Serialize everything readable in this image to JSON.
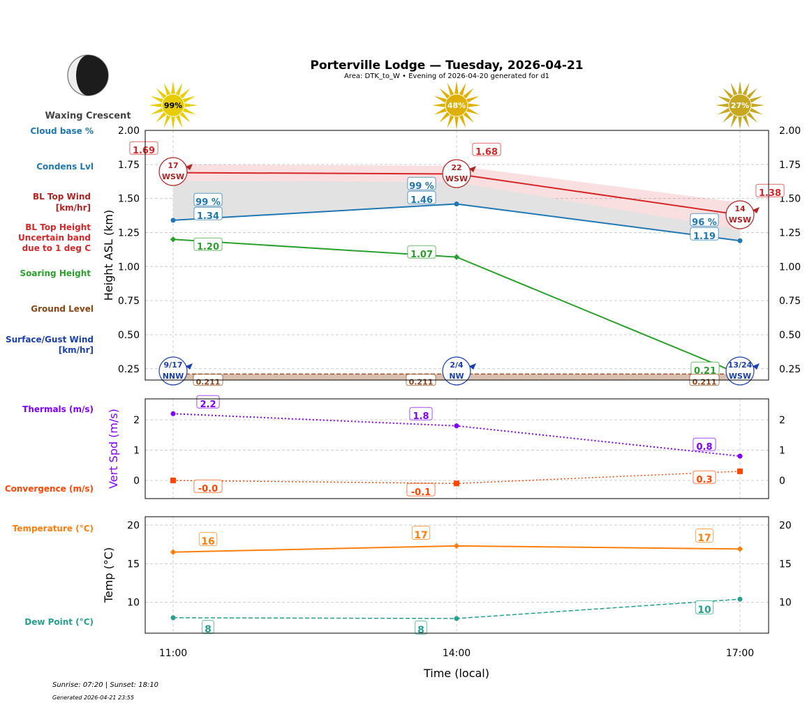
{
  "header": {
    "title": "Porterville Lodge — Tuesday, 2026-04-21",
    "subtitle": "Area: DTK_to_W • Evening of 2026-04-20 generated for d1",
    "moon_phase": "Waxing Crescent",
    "moon_icon": "waxing-crescent-moon-icon"
  },
  "footer": {
    "sun_times": "Sunrise: 07:20 | Sunset: 18:10",
    "generated": "Generated 2026-04-21 23:55"
  },
  "side_labels": {
    "cloud_base": "Cloud base %",
    "condens": "Condens Lvl",
    "bl_wind_1": "BL Top Wind",
    "bl_wind_2": "[km/hr]",
    "bl_height_1": "BL Top Height",
    "bl_height_2": "Uncertain band",
    "bl_height_3": "due to 1 deg C",
    "soaring": "Soaring Height",
    "ground": "Ground Level",
    "surface_1": "Surface/Gust Wind",
    "surface_2": "[km/hr]",
    "thermals": "Thermals (m/s)",
    "convergence": "Convergence (m/s)",
    "temperature": "Temperature (°C)",
    "dewpoint": "Dew Point (°C)"
  },
  "colors": {
    "bl_top": "#d62728",
    "condens": "#1f77b4",
    "soaring": "#2ca02c",
    "ground": "#8b4513",
    "surface_wind": "#1a3fb0",
    "bl_wind": "#b22222",
    "thermals": "#8000ff",
    "convergence": "#ff4500",
    "temperature": "#ff7f0e",
    "dewpoint": "#26a08e"
  },
  "chart_data": [
    {
      "type": "line",
      "ylabel": "Height ASL (km)",
      "ylim": [
        0.167,
        2.0
      ],
      "yticks": [
        "0.25",
        "0.50",
        "0.75",
        "1.00",
        "1.25",
        "1.50",
        "1.75",
        "2.00"
      ],
      "x": [
        "11:00",
        "14:00",
        "17:00"
      ],
      "grid": true,
      "sun_percent": [
        "99%",
        "48%",
        "27%"
      ],
      "series": [
        {
          "key": "bl_top",
          "values": [
            1.69,
            1.68,
            1.38
          ],
          "labels": [
            "1.69",
            "1.68",
            "1.38"
          ],
          "band_upper": [
            1.75,
            1.74,
            1.47
          ],
          "band_lower": [
            1.63,
            1.62,
            1.27
          ]
        },
        {
          "key": "condens",
          "values": [
            1.34,
            1.46,
            1.19
          ],
          "labels": [
            "1.34",
            "1.46",
            "1.19"
          ],
          "cloud_base": [
            "99 %",
            "99 %",
            "96 %"
          ]
        },
        {
          "key": "soaring",
          "values": [
            1.2,
            1.07,
            0.21
          ],
          "labels": [
            "1.20",
            "1.07",
            "0.21"
          ]
        },
        {
          "key": "ground",
          "values": [
            0.211,
            0.211,
            0.211
          ],
          "labels": [
            "0.211",
            "0.211",
            "0.211"
          ]
        }
      ],
      "bl_wind": [
        {
          "speed": "17",
          "dir": "WSW"
        },
        {
          "speed": "22",
          "dir": "WSW"
        },
        {
          "speed": "14",
          "dir": "WSW"
        }
      ],
      "surface_wind": [
        {
          "speed": "9/17",
          "dir": "NNW"
        },
        {
          "speed": "2/4",
          "dir": "NW"
        },
        {
          "speed": "13/24",
          "dir": "WSW"
        }
      ]
    },
    {
      "type": "line",
      "ylabel": "Vert Spd (m/s)",
      "ylim": [
        -0.6,
        2.69
      ],
      "yticks": [
        "0",
        "1",
        "2"
      ],
      "x": [
        "11:00",
        "14:00",
        "17:00"
      ],
      "grid": true,
      "series": [
        {
          "key": "thermals",
          "values": [
            2.2,
            1.8,
            0.8
          ],
          "labels": [
            "2.2",
            "1.8",
            "0.8"
          ]
        },
        {
          "key": "convergence",
          "values": [
            0.0,
            -0.1,
            0.3
          ],
          "labels": [
            "-0.0",
            "-0.1",
            "0.3"
          ]
        }
      ]
    },
    {
      "type": "line",
      "ylabel": "Temp (°C)",
      "xlabel": "Time (local)",
      "ylim": [
        6.0,
        21.08
      ],
      "yticks": [
        "10",
        "15",
        "20"
      ],
      "x": [
        "11:00",
        "14:00",
        "17:00"
      ],
      "grid": true,
      "series": [
        {
          "key": "temperature",
          "values": [
            16.5,
            17.3,
            16.9
          ],
          "labels": [
            "16",
            "17",
            "17"
          ]
        },
        {
          "key": "dewpoint",
          "values": [
            8.0,
            7.9,
            10.4
          ],
          "labels": [
            "8",
            "8",
            "10"
          ]
        }
      ]
    }
  ]
}
